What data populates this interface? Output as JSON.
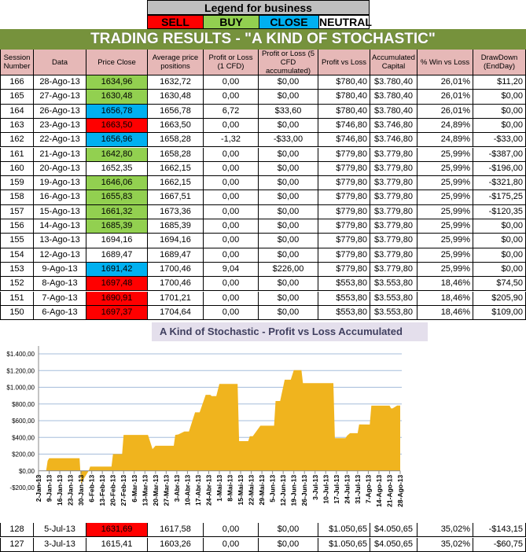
{
  "legend": {
    "title": "Legend for business",
    "items": [
      {
        "label": "SELL",
        "color": "#ff0000"
      },
      {
        "label": "BUY",
        "color": "#92d050"
      },
      {
        "label": "CLOSE",
        "color": "#00b0f0"
      },
      {
        "label": "NEUTRAL",
        "color": "#ffffff"
      }
    ]
  },
  "banner": "TRADING RESULTS - \"A KIND OF STOCHASTIC\"",
  "columns": [
    "Session Number",
    "Data",
    "Price Close",
    "Average price positions",
    "Profit or Loss (1 CFD)",
    "Profit or Loss (5 CFD accumulated)",
    "Profit vs Loss",
    "Accumulated Capital",
    "% Win vs Loss",
    "DrawDown (EndDay)"
  ],
  "rows": [
    [
      "166",
      "28-Ago-13",
      "1634,96",
      "1632,72",
      "0,00",
      "$0,00",
      "$780,40",
      "$3.780,40",
      "26,01%",
      "$11,20",
      "BUY"
    ],
    [
      "165",
      "27-Ago-13",
      "1630,48",
      "1630,48",
      "0,00",
      "$0,00",
      "$780,40",
      "$3.780,40",
      "26,01%",
      "$0,00",
      "BUY"
    ],
    [
      "164",
      "26-Ago-13",
      "1656,78",
      "1656,78",
      "6,72",
      "$33,60",
      "$780,40",
      "$3.780,40",
      "26,01%",
      "$0,00",
      "CLOSE"
    ],
    [
      "163",
      "23-Ago-13",
      "1663,50",
      "1663,50",
      "0,00",
      "$0,00",
      "$746,80",
      "$3.746,80",
      "24,89%",
      "$0,00",
      "SELL"
    ],
    [
      "162",
      "22-Ago-13",
      "1656,96",
      "1658,28",
      "-1,32",
      "-$33,00",
      "$746,80",
      "$3.746,80",
      "24,89%",
      "-$33,00",
      "CLOSE"
    ],
    [
      "161",
      "21-Ago-13",
      "1642,80",
      "1658,28",
      "0,00",
      "$0,00",
      "$779,80",
      "$3.779,80",
      "25,99%",
      "-$387,00",
      "BUY"
    ],
    [
      "160",
      "20-Ago-13",
      "1652,35",
      "1662,15",
      "0,00",
      "$0,00",
      "$779,80",
      "$3.779,80",
      "25,99%",
      "-$196,00",
      "NEUTRAL"
    ],
    [
      "159",
      "19-Ago-13",
      "1646,06",
      "1662,15",
      "0,00",
      "$0,00",
      "$779,80",
      "$3.779,80",
      "25,99%",
      "-$321,80",
      "BUY"
    ],
    [
      "158",
      "16-Ago-13",
      "1655,83",
      "1667,51",
      "0,00",
      "$0,00",
      "$779,80",
      "$3.779,80",
      "25,99%",
      "-$175,25",
      "BUY"
    ],
    [
      "157",
      "15-Ago-13",
      "1661,32",
      "1673,36",
      "0,00",
      "$0,00",
      "$779,80",
      "$3.779,80",
      "25,99%",
      "-$120,35",
      "BUY"
    ],
    [
      "156",
      "14-Ago-13",
      "1685,39",
      "1685,39",
      "0,00",
      "$0,00",
      "$779,80",
      "$3.779,80",
      "25,99%",
      "$0,00",
      "BUY"
    ],
    [
      "155",
      "13-Ago-13",
      "1694,16",
      "1694,16",
      "0,00",
      "$0,00",
      "$779,80",
      "$3.779,80",
      "25,99%",
      "$0,00",
      "NEUTRAL"
    ],
    [
      "154",
      "12-Ago-13",
      "1689,47",
      "1689,47",
      "0,00",
      "$0,00",
      "$779,80",
      "$3.779,80",
      "25,99%",
      "$0,00",
      "NEUTRAL"
    ],
    [
      "153",
      "9-Ago-13",
      "1691,42",
      "1700,46",
      "9,04",
      "$226,00",
      "$779,80",
      "$3.779,80",
      "25,99%",
      "$0,00",
      "CLOSE"
    ],
    [
      "152",
      "8-Ago-13",
      "1697,48",
      "1700,46",
      "0,00",
      "$0,00",
      "$553,80",
      "$3.553,80",
      "18,46%",
      "$74,50",
      "SELL"
    ],
    [
      "151",
      "7-Ago-13",
      "1690,91",
      "1701,21",
      "0,00",
      "$0,00",
      "$553,80",
      "$3.553,80",
      "18,46%",
      "$205,90",
      "SELL"
    ],
    [
      "150",
      "6-Ago-13",
      "1697,37",
      "1704,64",
      "0,00",
      "$0,00",
      "$553,80",
      "$3.553,80",
      "18,46%",
      "$109,00",
      "SELL"
    ]
  ],
  "bottom_rows": [
    [
      "128",
      "5-Jul-13",
      "1631,69",
      "1617,58",
      "0,00",
      "$0,00",
      "$1.050,65",
      "$4.050,65",
      "35,02%",
      "-$143,15",
      "SELL"
    ],
    [
      "127",
      "3-Jul-13",
      "1615,41",
      "1603,26",
      "0,00",
      "$0,00",
      "$1.050,65",
      "$4.050,65",
      "35,02%",
      "-$60,75",
      "NEUTRAL"
    ]
  ],
  "chart_data": {
    "type": "area",
    "title": "A Kind of Stochastic - Profit vs Loss Accumulated",
    "color": "#f0b41e",
    "grid": true,
    "ylim": [
      -200,
      1400
    ],
    "yticks": [
      "$1.400,00",
      "$1.200,00",
      "$1.000,00",
      "$800,00",
      "$600,00",
      "$400,00",
      "$200,00",
      "$0,00",
      "-$200,00"
    ],
    "ytick_values": [
      1400,
      1200,
      1000,
      800,
      600,
      400,
      200,
      0,
      -200
    ],
    "xticks": [
      "2-Jan-13",
      "9-Jan-13",
      "16-Jan-13",
      "23-Jan-13",
      "30-Jan-13",
      "6-Feb-13",
      "13-Feb-13",
      "20-Feb-13",
      "27-Feb-13",
      "6-Mar-13",
      "13-Mar-13",
      "20-Mar-13",
      "27-Mar-13",
      "3-Abr-13",
      "10-Abr-13",
      "17-Abr-13",
      "24-Abr-13",
      "1-Mai-13",
      "8-Mai-13",
      "15-Mai-13",
      "22-Mai-13",
      "29-Mai-13",
      "5-Jun-13",
      "12-Jun-13",
      "19-Jun-13",
      "26-Jun-13",
      "3-Jul-13",
      "10-Jul-13",
      "17-Jul-13",
      "24-Jul-13",
      "31-Jul-13",
      "7-Ago-13",
      "14-Ago-13",
      "21-Ago-13",
      "28-Ago-13"
    ],
    "points": [
      [
        "7-Jan-13",
        0
      ],
      [
        "8-Jan-13",
        120
      ],
      [
        "9-Jan-13",
        150
      ],
      [
        "29-Jan-13",
        150
      ],
      [
        "30-Jan-13",
        -150
      ],
      [
        "4-Feb-13",
        0
      ],
      [
        "5-Feb-13",
        50
      ],
      [
        "19-Feb-13",
        50
      ],
      [
        "20-Feb-13",
        200
      ],
      [
        "26-Feb-13",
        200
      ],
      [
        "27-Feb-13",
        430
      ],
      [
        "15-Mar-13",
        430
      ],
      [
        "18-Mar-13",
        260
      ],
      [
        "20-Mar-13",
        300
      ],
      [
        "1-Abr-13",
        300
      ],
      [
        "2-Abr-13",
        430
      ],
      [
        "4-Abr-13",
        435
      ],
      [
        "8-Abr-13",
        470
      ],
      [
        "11-Abr-13",
        470
      ],
      [
        "15-Abr-13",
        700
      ],
      [
        "18-Abr-13",
        700
      ],
      [
        "22-Abr-13",
        910
      ],
      [
        "25-Abr-13",
        910
      ],
      [
        "26-Abr-13",
        895
      ],
      [
        "29-Abr-13",
        895
      ],
      [
        "1-Mai-13",
        1040
      ],
      [
        "13-Mai-13",
        1040
      ],
      [
        "14-Mai-13",
        355
      ],
      [
        "20-Mai-13",
        355
      ],
      [
        "21-Mai-13",
        415
      ],
      [
        "23-Mai-13",
        415
      ],
      [
        "28-Mai-13",
        540
      ],
      [
        "6-Jun-13",
        540
      ],
      [
        "7-Jun-13",
        835
      ],
      [
        "10-Jun-13",
        835
      ],
      [
        "11-Jun-13",
        920
      ],
      [
        "13-Jun-13",
        1090
      ],
      [
        "17-Jun-13",
        1090
      ],
      [
        "19-Jun-13",
        1205
      ],
      [
        "24-Jun-13",
        1205
      ],
      [
        "25-Jun-13",
        1050
      ],
      [
        "15-Jul-13",
        1050
      ],
      [
        "16-Jul-13",
        390
      ],
      [
        "23-Jul-13",
        390
      ],
      [
        "24-Jul-13",
        420
      ],
      [
        "26-Jul-13",
        450
      ],
      [
        "31-Jul-13",
        450
      ],
      [
        "1-Ago-13",
        555
      ],
      [
        "8-Ago-13",
        553.8
      ],
      [
        "9-Ago-13",
        779.8
      ],
      [
        "21-Ago-13",
        779.8
      ],
      [
        "22-Ago-13",
        746.8
      ],
      [
        "23-Ago-13",
        746.8
      ],
      [
        "26-Ago-13",
        780.4
      ],
      [
        "28-Ago-13",
        780.4
      ]
    ]
  }
}
